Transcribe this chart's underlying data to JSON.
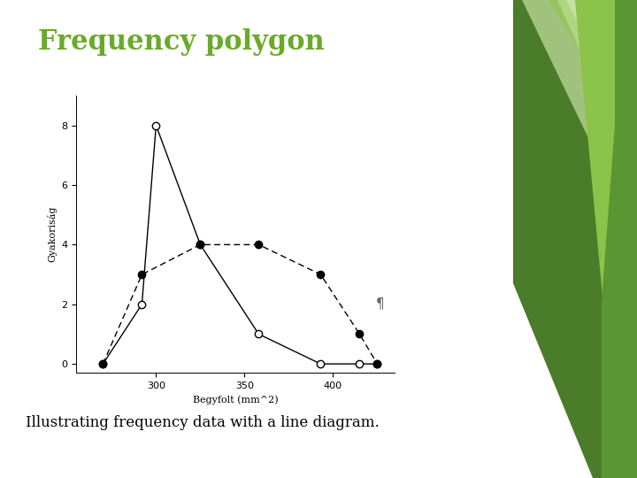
{
  "title": "Frequency polygon",
  "subtitle": "Illustrating frequency data with a line diagram.",
  "xlabel": "Begyfolt (mm^2)",
  "ylabel_text": "Gyakoriság",
  "title_color": "#6aaa2a",
  "background_color": "#ffffff",
  "solid_x": [
    270,
    292,
    300,
    325,
    358,
    393,
    415,
    425
  ],
  "solid_y": [
    0,
    2,
    8,
    4,
    1,
    0,
    0,
    0
  ],
  "dashed_x": [
    270,
    292,
    325,
    358,
    393,
    415,
    425
  ],
  "dashed_y": [
    0,
    3,
    4,
    4,
    3,
    1,
    0
  ],
  "xticks": [
    300,
    350,
    400
  ],
  "yticks": [
    0,
    2,
    4,
    6,
    8
  ],
  "xlim": [
    255,
    435
  ],
  "ylim": [
    -0.3,
    9
  ],
  "green_dark": "#4a7c2a",
  "green_mid": "#5a9632",
  "green_light": "#8bc34a",
  "green_pale": "#c5e0a0"
}
